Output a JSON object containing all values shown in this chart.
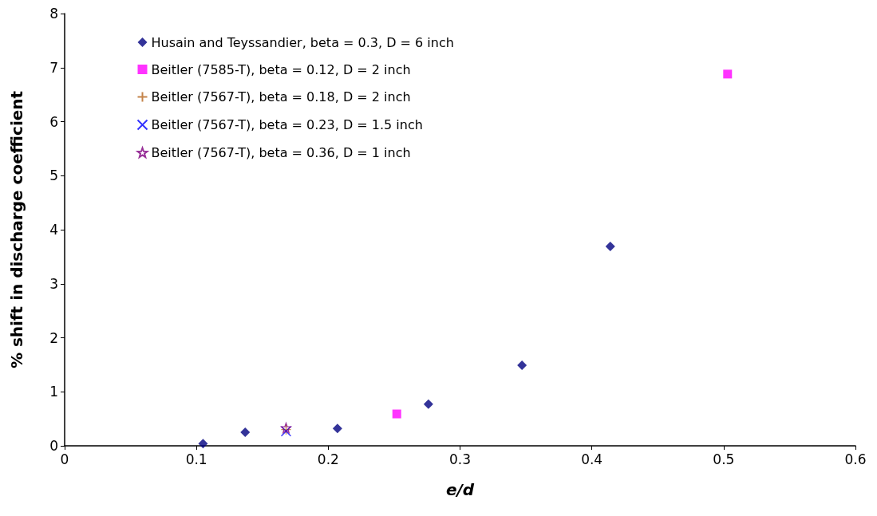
{
  "chart_data": {
    "type": "scatter",
    "xlabel": "e/d",
    "ylabel": "% shift in discharge coefficient",
    "xlim": [
      0,
      0.6
    ],
    "xticks": [
      0,
      0.1,
      0.2,
      0.3,
      0.4,
      0.5,
      0.6
    ],
    "ylim": [
      0,
      8
    ],
    "yticks": [
      0,
      1,
      2,
      3,
      4,
      5,
      6,
      7,
      8
    ],
    "grid": false,
    "legend": "top left",
    "series": [
      {
        "name": "Husain and Teyssandier, beta = 0.3, D = 6 inch",
        "color": "#000080",
        "marker": "diamond",
        "x": [
          0.105,
          0.137,
          0.207,
          0.276,
          0.347,
          0.414
        ],
        "values": [
          0.04,
          0.25,
          0.32,
          0.77,
          1.49,
          3.69
        ]
      },
      {
        "name": "Beitler (7585-T), beta = 0.12, D = 2 inch",
        "color": "#ff00ff",
        "marker": "square",
        "x": [
          0.252,
          0.503
        ],
        "values": [
          0.59,
          6.88
        ]
      },
      {
        "name": "Beitler (7567-T), beta = 0.18, D = 2 inch",
        "color": "#b5651d",
        "marker": "cross",
        "x": [
          0.168
        ],
        "values": [
          0.3
        ]
      },
      {
        "name": "Beitler (7567-T), beta = 0.23, D = 1.5 inch",
        "color": "#0000ff",
        "marker": "x",
        "x": [
          0.168
        ],
        "values": [
          0.27
        ]
      },
      {
        "name": "Beitler (7567-T), beta = 0.36, D = 1 inch",
        "color": "#800080",
        "marker": "star",
        "x": [
          0.168
        ],
        "values": [
          0.33
        ]
      }
    ]
  }
}
